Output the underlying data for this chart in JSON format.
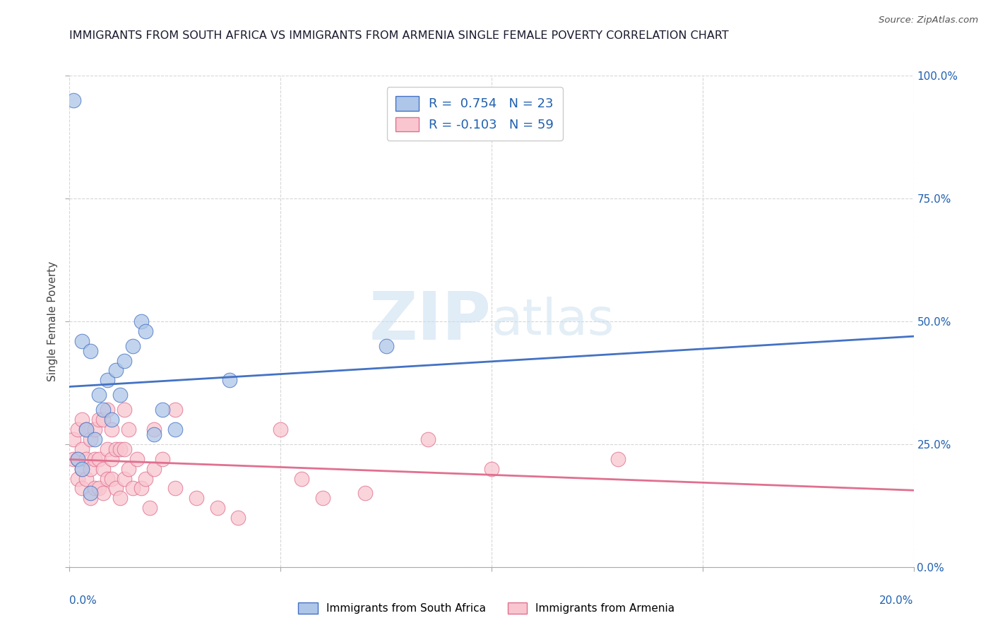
{
  "title": "IMMIGRANTS FROM SOUTH AFRICA VS IMMIGRANTS FROM ARMENIA SINGLE FEMALE POVERTY CORRELATION CHART",
  "source": "Source: ZipAtlas.com",
  "ylabel": "Single Female Poverty",
  "legend1_label": "Immigrants from South Africa",
  "legend2_label": "Immigrants from Armenia",
  "r1": 0.754,
  "n1": 23,
  "r2": -0.103,
  "n2": 59,
  "color_blue_fill": "#aec6e8",
  "color_pink_fill": "#f9c6d0",
  "color_blue_line": "#4472c4",
  "color_pink_line": "#e07090",
  "color_blue_dark": "#2060b0",
  "watermark_color": "#cce0f0",
  "south_africa_x": [
    0.001,
    0.002,
    0.003,
    0.003,
    0.004,
    0.005,
    0.005,
    0.006,
    0.007,
    0.008,
    0.009,
    0.01,
    0.011,
    0.012,
    0.013,
    0.015,
    0.017,
    0.018,
    0.02,
    0.022,
    0.025,
    0.038,
    0.075
  ],
  "south_africa_y": [
    0.95,
    0.22,
    0.2,
    0.46,
    0.28,
    0.15,
    0.44,
    0.26,
    0.35,
    0.32,
    0.38,
    0.3,
    0.4,
    0.35,
    0.42,
    0.45,
    0.5,
    0.48,
    0.27,
    0.32,
    0.28,
    0.38,
    0.45
  ],
  "armenia_x": [
    0.001,
    0.001,
    0.002,
    0.002,
    0.002,
    0.003,
    0.003,
    0.003,
    0.003,
    0.004,
    0.004,
    0.004,
    0.005,
    0.005,
    0.005,
    0.006,
    0.006,
    0.006,
    0.007,
    0.007,
    0.007,
    0.008,
    0.008,
    0.008,
    0.009,
    0.009,
    0.009,
    0.01,
    0.01,
    0.01,
    0.011,
    0.011,
    0.012,
    0.012,
    0.013,
    0.013,
    0.013,
    0.014,
    0.014,
    0.015,
    0.016,
    0.017,
    0.018,
    0.019,
    0.02,
    0.02,
    0.022,
    0.025,
    0.025,
    0.03,
    0.035,
    0.04,
    0.05,
    0.055,
    0.06,
    0.07,
    0.085,
    0.1,
    0.13
  ],
  "armenia_y": [
    0.22,
    0.26,
    0.18,
    0.22,
    0.28,
    0.16,
    0.2,
    0.24,
    0.3,
    0.18,
    0.22,
    0.28,
    0.14,
    0.2,
    0.26,
    0.16,
    0.22,
    0.28,
    0.16,
    0.22,
    0.3,
    0.15,
    0.2,
    0.3,
    0.18,
    0.24,
    0.32,
    0.18,
    0.22,
    0.28,
    0.16,
    0.24,
    0.14,
    0.24,
    0.18,
    0.24,
    0.32,
    0.2,
    0.28,
    0.16,
    0.22,
    0.16,
    0.18,
    0.12,
    0.2,
    0.28,
    0.22,
    0.16,
    0.32,
    0.14,
    0.12,
    0.1,
    0.28,
    0.18,
    0.14,
    0.15,
    0.26,
    0.2,
    0.22
  ],
  "xmin": 0.0,
  "xmax": 0.2,
  "ymin": 0.0,
  "ymax": 1.0
}
